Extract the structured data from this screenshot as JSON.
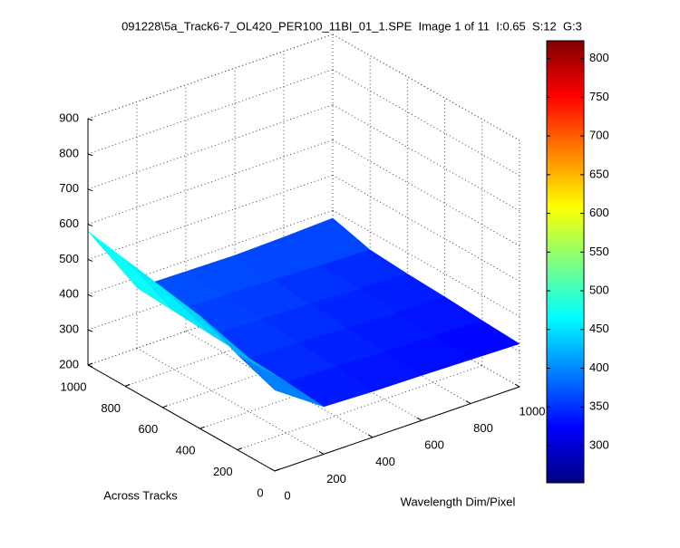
{
  "chart_data": {
    "type": "surface3d",
    "title": "091228\\5a_Track6-7_OL420_PER100_11BI_01_1.SPE  Image 1 of 11  I:0.65  S:12  G:3",
    "xlabel": "Wavelength Dim/Pixel",
    "ylabel": "Across Tracks",
    "x": [
      0,
      200,
      400,
      600,
      800,
      1000
    ],
    "y": [
      0,
      200,
      400,
      600,
      800,
      1000
    ],
    "z": [
      [
        430,
        335,
        330,
        328,
        325,
        322
      ],
      [
        470,
        345,
        340,
        335,
        332,
        328
      ],
      [
        520,
        352,
        348,
        342,
        338,
        335
      ],
      [
        540,
        358,
        355,
        350,
        345,
        340
      ],
      [
        560,
        365,
        362,
        358,
        352,
        348
      ],
      [
        580,
        372,
        370,
        368,
        372,
        378
      ]
    ],
    "xlim": [
      0,
      1000
    ],
    "ylim": [
      0,
      1000
    ],
    "zlim": [
      200,
      900
    ],
    "xticks": [
      0,
      200,
      400,
      600,
      800,
      1000
    ],
    "yticks": [
      0,
      200,
      400,
      600,
      800,
      1000
    ],
    "zticks": [
      200,
      300,
      400,
      500,
      600,
      700,
      800,
      900
    ],
    "colorbar": {
      "clim": [
        252,
        823
      ],
      "ticks": [
        300,
        350,
        400,
        450,
        500,
        550,
        600,
        650,
        700,
        750,
        800
      ],
      "colormap": "jet"
    },
    "grid": true
  }
}
